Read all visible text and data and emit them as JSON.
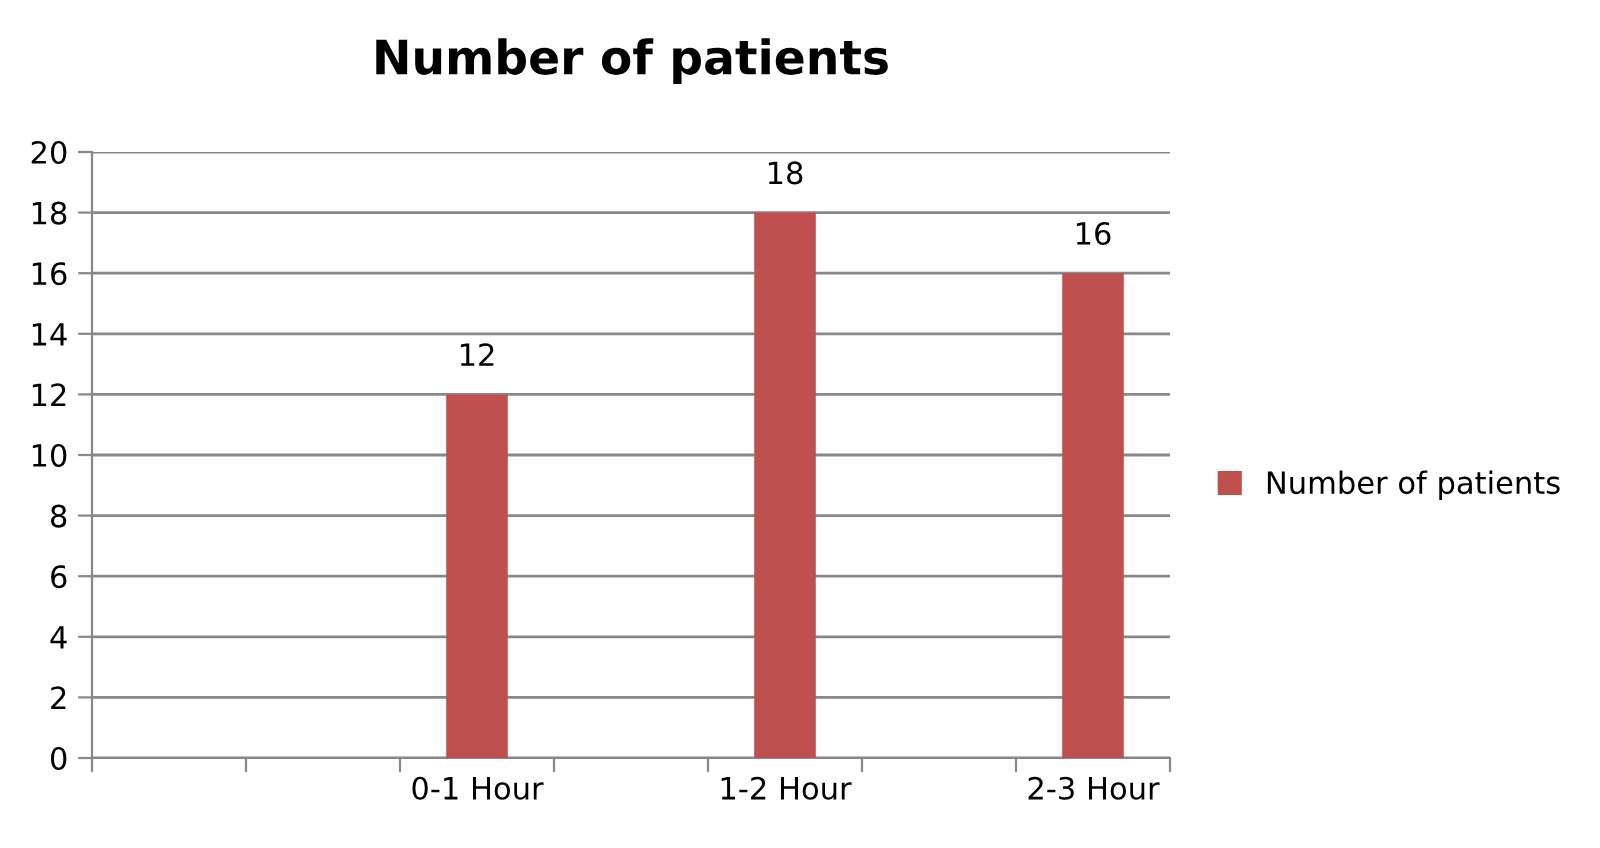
{
  "chart_data": {
    "type": "bar",
    "title": "Number of patients",
    "categories": [
      null,
      null,
      "0-1 Hour",
      null,
      "1-2 Hour",
      null,
      "2-3 Hour"
    ],
    "series": [
      {
        "name": "Number of patients",
        "color": "#c0504d",
        "values": [
          null,
          null,
          12,
          null,
          18,
          null,
          16
        ]
      }
    ],
    "ylim": [
      0,
      20
    ],
    "yticks": [
      0,
      2,
      4,
      6,
      8,
      10,
      12,
      14,
      16,
      18,
      20
    ],
    "grid": "y",
    "legend": "right",
    "data_labels": true
  }
}
